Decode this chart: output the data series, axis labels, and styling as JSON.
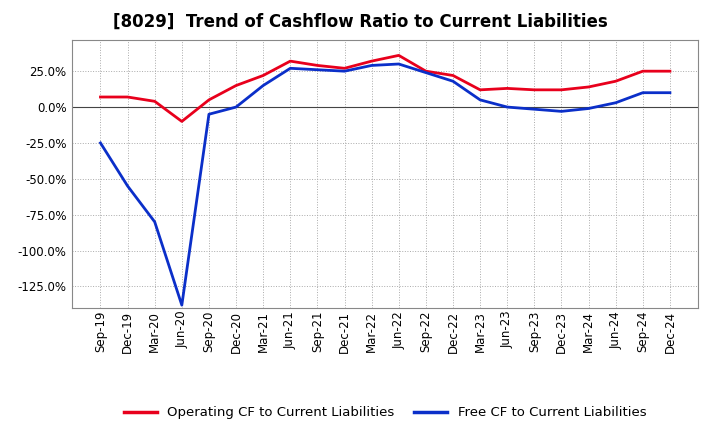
{
  "title": "[8029]  Trend of Cashflow Ratio to Current Liabilities",
  "x_labels": [
    "Sep-19",
    "Dec-19",
    "Mar-20",
    "Jun-20",
    "Sep-20",
    "Dec-20",
    "Mar-21",
    "Jun-21",
    "Sep-21",
    "Dec-21",
    "Mar-22",
    "Jun-22",
    "Sep-22",
    "Dec-22",
    "Mar-23",
    "Jun-23",
    "Sep-23",
    "Dec-23",
    "Mar-24",
    "Jun-24",
    "Sep-24",
    "Dec-24"
  ],
  "operating_cf": [
    7.0,
    7.0,
    4.0,
    -10.0,
    5.0,
    15.0,
    22.0,
    32.0,
    29.0,
    27.0,
    32.0,
    36.0,
    25.0,
    22.0,
    12.0,
    13.0,
    12.0,
    12.0,
    14.0,
    18.0,
    25.0,
    25.0
  ],
  "free_cf": [
    -25.0,
    -55.0,
    -80.0,
    -138.0,
    -5.0,
    0.0,
    15.0,
    27.0,
    26.0,
    25.0,
    29.0,
    30.0,
    24.0,
    18.0,
    5.0,
    0.0,
    -1.5,
    -3.0,
    -1.0,
    3.0,
    10.0,
    10.0
  ],
  "operating_cf_color": "#e8001c",
  "free_cf_color": "#0b2fc9",
  "background_color": "#ffffff",
  "plot_bg_color": "#ffffff",
  "grid_color": "#aaaaaa",
  "ylim": [
    -140,
    47
  ],
  "yticks": [
    -125.0,
    -100.0,
    -75.0,
    -50.0,
    -25.0,
    0.0,
    25.0
  ],
  "legend_op_label": "Operating CF to Current Liabilities",
  "legend_free_label": "Free CF to Current Liabilities",
  "title_fontsize": 12,
  "axis_fontsize": 8.5,
  "legend_fontsize": 9.5,
  "line_width": 2.0
}
